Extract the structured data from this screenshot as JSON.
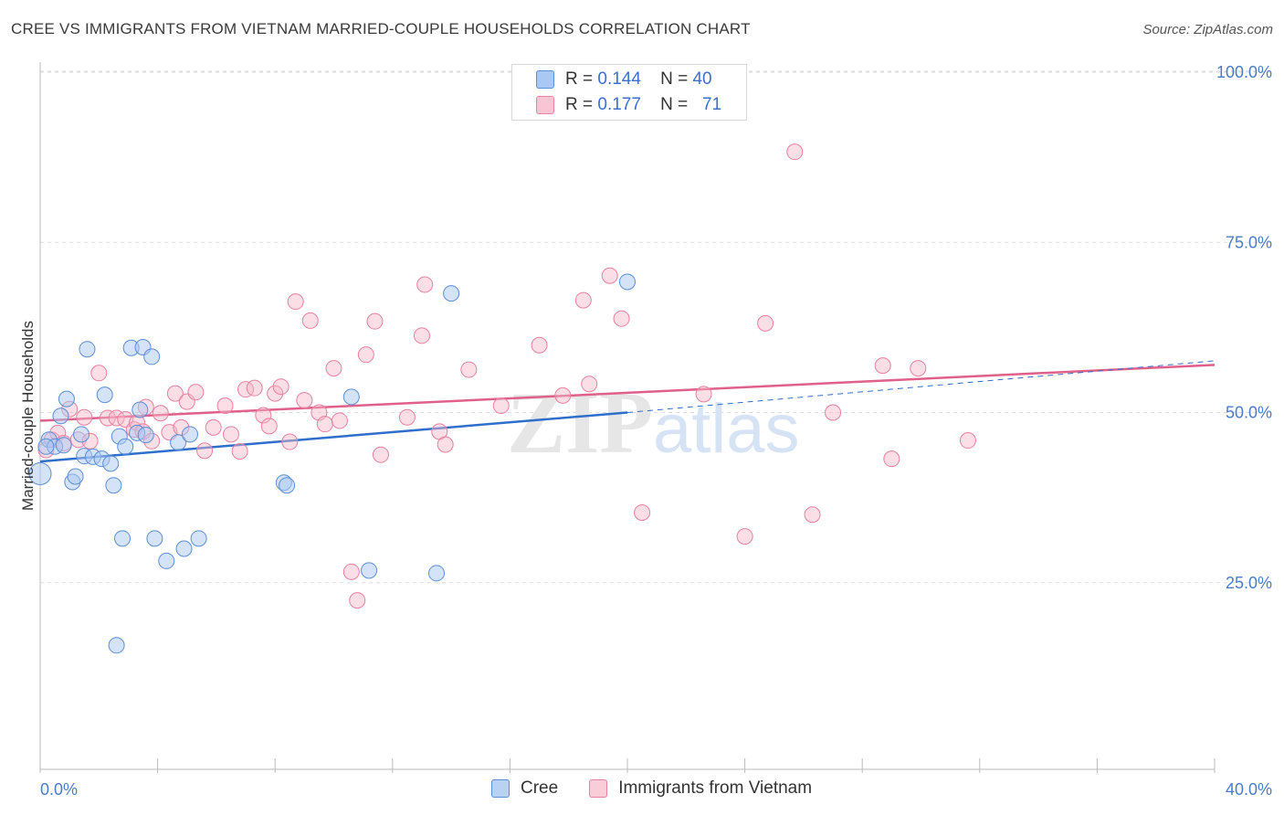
{
  "title": "CREE VS IMMIGRANTS FROM VIETNAM MARRIED-COUPLE HOUSEHOLDS CORRELATION CHART",
  "source": "Source: ZipAtlas.com",
  "watermark": {
    "zip": "ZIP",
    "atlas": "atlas"
  },
  "legend": {
    "rows": [
      {
        "r_label": "R =",
        "r_value": "0.144",
        "n_label": "N =",
        "n_value": "40"
      },
      {
        "r_label": "R =",
        "r_value": "0.177",
        "n_label": "N =",
        "n_value": "71"
      }
    ]
  },
  "bottom_legend": {
    "series1": "Cree",
    "series2": "Immigrants from Vietnam"
  },
  "colors": {
    "cree_fill": "#a9c8f2",
    "cree_stroke": "#5b8fd6",
    "cree_line": "#2f6fcc",
    "viet_fill": "#f7b6c8",
    "viet_stroke": "#e8809f",
    "viet_line": "#e0608a",
    "grid": "#dddddd",
    "axis_text": "#4a7cc7"
  },
  "chart_data": {
    "type": "scatter",
    "title": "CREE VS IMMIGRANTS FROM VIETNAM MARRIED-COUPLE HOUSEHOLDS CORRELATION CHART",
    "xlabel": "",
    "ylabel": "Married-couple Households",
    "xlim": [
      0,
      40
    ],
    "ylim": [
      0,
      105
    ],
    "x_tick_labels": [
      "0.0%",
      "40.0%"
    ],
    "y_ticks": [
      25,
      50,
      75,
      100
    ],
    "y_tick_labels": [
      "25.0%",
      "50.0%",
      "75.0%",
      "100.0%"
    ],
    "series": [
      {
        "name": "Cree",
        "R": 0.144,
        "N": 40,
        "trend": {
          "x0": 0,
          "y0": 42.8,
          "x1": 20,
          "y1": 50.0,
          "dash_to_x": 40,
          "dash_to_y": 57.6
        },
        "points": [
          [
            0.0,
            41.0
          ],
          [
            0.3,
            46.0
          ],
          [
            0.5,
            45.0
          ],
          [
            0.7,
            49.5
          ],
          [
            0.8,
            45.2
          ],
          [
            0.9,
            52.0
          ],
          [
            1.1,
            39.8
          ],
          [
            1.2,
            40.6
          ],
          [
            1.4,
            46.8
          ],
          [
            1.5,
            43.6
          ],
          [
            1.6,
            59.3
          ],
          [
            1.8,
            43.5
          ],
          [
            2.1,
            43.2
          ],
          [
            2.2,
            52.6
          ],
          [
            2.4,
            42.5
          ],
          [
            2.5,
            39.3
          ],
          [
            2.6,
            15.8
          ],
          [
            2.7,
            46.5
          ],
          [
            2.8,
            31.5
          ],
          [
            2.9,
            45.0
          ],
          [
            3.1,
            59.5
          ],
          [
            3.3,
            47.0
          ],
          [
            3.4,
            50.4
          ],
          [
            3.5,
            59.6
          ],
          [
            3.6,
            46.7
          ],
          [
            3.8,
            58.2
          ],
          [
            3.9,
            31.5
          ],
          [
            4.3,
            28.2
          ],
          [
            4.7,
            45.6
          ],
          [
            4.9,
            30.0
          ],
          [
            5.1,
            46.8
          ],
          [
            5.4,
            31.5
          ],
          [
            8.3,
            39.7
          ],
          [
            8.4,
            39.3
          ],
          [
            10.6,
            52.3
          ],
          [
            11.2,
            26.8
          ],
          [
            13.5,
            26.4
          ],
          [
            14.0,
            67.5
          ],
          [
            20.0,
            69.2
          ],
          [
            0.2,
            45.0
          ]
        ]
      },
      {
        "name": "Immigrants from Vietnam",
        "R": 0.177,
        "N": 71,
        "trend": {
          "x0": 0,
          "y0": 48.8,
          "x1": 40,
          "y1": 57.0
        },
        "points": [
          [
            0.2,
            44.5
          ],
          [
            0.4,
            46.0
          ],
          [
            0.6,
            47.0
          ],
          [
            0.8,
            45.5
          ],
          [
            1.0,
            50.5
          ],
          [
            1.3,
            46.0
          ],
          [
            1.5,
            49.3
          ],
          [
            1.7,
            45.8
          ],
          [
            2.0,
            55.8
          ],
          [
            2.3,
            49.2
          ],
          [
            2.6,
            49.2
          ],
          [
            2.9,
            49.0
          ],
          [
            3.2,
            47.5
          ],
          [
            3.3,
            48.5
          ],
          [
            3.5,
            47.2
          ],
          [
            3.6,
            50.8
          ],
          [
            3.8,
            45.8
          ],
          [
            4.1,
            49.9
          ],
          [
            4.4,
            47.1
          ],
          [
            4.6,
            52.8
          ],
          [
            4.8,
            47.8
          ],
          [
            5.0,
            51.6
          ],
          [
            5.3,
            53.0
          ],
          [
            5.6,
            44.4
          ],
          [
            5.9,
            47.8
          ],
          [
            6.3,
            51.0
          ],
          [
            6.5,
            46.8
          ],
          [
            6.8,
            44.3
          ],
          [
            7.0,
            53.4
          ],
          [
            7.3,
            53.6
          ],
          [
            7.6,
            49.6
          ],
          [
            7.8,
            48.0
          ],
          [
            8.0,
            52.8
          ],
          [
            8.2,
            53.8
          ],
          [
            8.5,
            45.7
          ],
          [
            8.7,
            66.3
          ],
          [
            9.0,
            51.8
          ],
          [
            9.2,
            63.5
          ],
          [
            9.5,
            50.0
          ],
          [
            9.7,
            48.3
          ],
          [
            10.0,
            56.5
          ],
          [
            10.2,
            48.8
          ],
          [
            10.6,
            26.6
          ],
          [
            10.8,
            22.4
          ],
          [
            11.1,
            58.5
          ],
          [
            11.4,
            63.4
          ],
          [
            11.6,
            43.8
          ],
          [
            12.5,
            49.3
          ],
          [
            13.0,
            61.3
          ],
          [
            13.1,
            68.8
          ],
          [
            13.6,
            47.2
          ],
          [
            13.8,
            45.3
          ],
          [
            14.6,
            56.3
          ],
          [
            15.7,
            51.0
          ],
          [
            17.0,
            59.9
          ],
          [
            17.8,
            52.5
          ],
          [
            18.5,
            66.5
          ],
          [
            18.7,
            54.2
          ],
          [
            19.4,
            70.1
          ],
          [
            19.8,
            63.8
          ],
          [
            20.5,
            35.3
          ],
          [
            22.6,
            52.7
          ],
          [
            24.0,
            31.8
          ],
          [
            24.7,
            63.1
          ],
          [
            25.7,
            88.3
          ],
          [
            26.3,
            35.0
          ],
          [
            27.0,
            50.0
          ],
          [
            28.7,
            56.9
          ],
          [
            29.0,
            43.2
          ],
          [
            29.9,
            56.5
          ],
          [
            31.6,
            45.9
          ]
        ]
      }
    ]
  }
}
